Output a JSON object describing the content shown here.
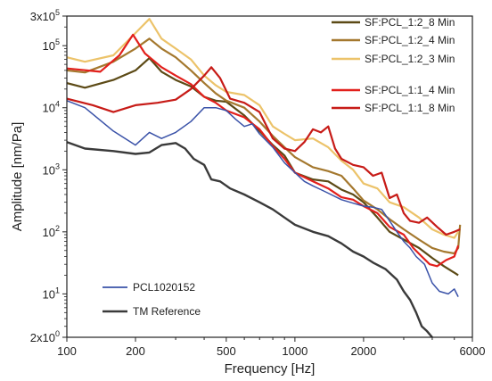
{
  "chart_data": {
    "type": "line",
    "xlabel": "Frequency [Hz]",
    "ylabel": "Amplitude [nm/Pa]",
    "x_scale": "log",
    "y_scale": "log",
    "xlim": [
      100,
      6000
    ],
    "ylim": [
      2,
      300000
    ],
    "x_ticks": [
      {
        "value": 100,
        "label": "100"
      },
      {
        "value": 200,
        "label": "200"
      },
      {
        "value": 500,
        "label": "500"
      },
      {
        "value": 1000,
        "label": "1000"
      },
      {
        "value": 2000,
        "label": "2000"
      },
      {
        "value": 6000,
        "label": "6000"
      }
    ],
    "y_ticks": [
      {
        "value": 2,
        "label": "2x10",
        "exp": "0"
      },
      {
        "value": 10,
        "label": "10",
        "exp": "1"
      },
      {
        "value": 100,
        "label": "10",
        "exp": "2"
      },
      {
        "value": 1000,
        "label": "10",
        "exp": "3"
      },
      {
        "value": 10000,
        "label": "10",
        "exp": "4"
      },
      {
        "value": 100000,
        "label": "10",
        "exp": "5"
      },
      {
        "value": 300000,
        "label": "3x10",
        "exp": "5"
      }
    ],
    "grid": false,
    "legend_placement": [
      "top-right",
      "bottom-left"
    ],
    "series": [
      {
        "name": "SF:PCL_1:2_8 Min",
        "color": "#5c4a16",
        "legend_group": "top",
        "points": [
          [
            100,
            25000
          ],
          [
            120,
            21000
          ],
          [
            160,
            28000
          ],
          [
            200,
            40000
          ],
          [
            230,
            63000
          ],
          [
            260,
            38000
          ],
          [
            300,
            28000
          ],
          [
            350,
            22000
          ],
          [
            400,
            15000
          ],
          [
            450,
            13000
          ],
          [
            500,
            12500
          ],
          [
            600,
            7500
          ],
          [
            700,
            4200
          ],
          [
            800,
            2500
          ],
          [
            900,
            1700
          ],
          [
            1000,
            900
          ],
          [
            1200,
            700
          ],
          [
            1400,
            650
          ],
          [
            1600,
            480
          ],
          [
            1800,
            400
          ],
          [
            2000,
            300
          ],
          [
            2300,
            170
          ],
          [
            2600,
            100
          ],
          [
            3000,
            75
          ],
          [
            3500,
            55
          ],
          [
            4000,
            38
          ],
          [
            4500,
            28
          ],
          [
            5000,
            22
          ],
          [
            5200,
            20
          ]
        ]
      },
      {
        "name": "SF:PCL_1:2_4 Min",
        "color": "#a4782e",
        "legend_group": "top",
        "points": [
          [
            100,
            40000
          ],
          [
            120,
            37000
          ],
          [
            160,
            55000
          ],
          [
            200,
            90000
          ],
          [
            230,
            130000
          ],
          [
            260,
            90000
          ],
          [
            300,
            65000
          ],
          [
            350,
            40000
          ],
          [
            400,
            25000
          ],
          [
            450,
            17000
          ],
          [
            500,
            13000
          ],
          [
            600,
            10000
          ],
          [
            700,
            6000
          ],
          [
            800,
            3500
          ],
          [
            900,
            2300
          ],
          [
            1000,
            1600
          ],
          [
            1200,
            1100
          ],
          [
            1400,
            950
          ],
          [
            1600,
            800
          ],
          [
            1800,
            500
          ],
          [
            2000,
            320
          ],
          [
            2300,
            230
          ],
          [
            2600,
            160
          ],
          [
            3000,
            110
          ],
          [
            3500,
            75
          ],
          [
            4000,
            55
          ],
          [
            4500,
            48
          ],
          [
            5000,
            45
          ],
          [
            5200,
            55
          ],
          [
            5300,
            130
          ]
        ]
      },
      {
        "name": "SF:PCL_1:2_3 Min",
        "color": "#ecc36a",
        "legend_group": "top",
        "points": [
          [
            100,
            65000
          ],
          [
            120,
            55000
          ],
          [
            160,
            70000
          ],
          [
            200,
            160000
          ],
          [
            230,
            270000
          ],
          [
            260,
            130000
          ],
          [
            300,
            90000
          ],
          [
            350,
            60000
          ],
          [
            400,
            33000
          ],
          [
            450,
            23000
          ],
          [
            500,
            18000
          ],
          [
            600,
            16000
          ],
          [
            700,
            11000
          ],
          [
            800,
            5000
          ],
          [
            900,
            3800
          ],
          [
            1000,
            3000
          ],
          [
            1200,
            3200
          ],
          [
            1400,
            2300
          ],
          [
            1600,
            1400
          ],
          [
            1800,
            1000
          ],
          [
            2000,
            600
          ],
          [
            2300,
            500
          ],
          [
            2600,
            300
          ],
          [
            3000,
            250
          ],
          [
            3500,
            170
          ],
          [
            4000,
            110
          ],
          [
            4500,
            90
          ],
          [
            5000,
            80
          ],
          [
            5200,
            100
          ]
        ]
      },
      {
        "name": "SF:PCL_1:1_4 Min",
        "color": "#e2201c",
        "legend_group": "top",
        "points": [
          [
            100,
            43000
          ],
          [
            140,
            38000
          ],
          [
            170,
            70000
          ],
          [
            195,
            150000
          ],
          [
            220,
            75000
          ],
          [
            260,
            45000
          ],
          [
            300,
            33000
          ],
          [
            350,
            24000
          ],
          [
            400,
            15000
          ],
          [
            450,
            12000
          ],
          [
            500,
            9000
          ],
          [
            600,
            7000
          ],
          [
            700,
            4500
          ],
          [
            800,
            2400
          ],
          [
            900,
            1500
          ],
          [
            1000,
            900
          ],
          [
            1200,
            650
          ],
          [
            1400,
            500
          ],
          [
            1600,
            360
          ],
          [
            1800,
            330
          ],
          [
            2000,
            260
          ],
          [
            2300,
            200
          ],
          [
            2600,
            120
          ],
          [
            3000,
            90
          ],
          [
            3300,
            55
          ],
          [
            3600,
            40
          ],
          [
            3900,
            30
          ],
          [
            4200,
            28
          ],
          [
            4600,
            35
          ],
          [
            5000,
            40
          ],
          [
            5200,
            60
          ]
        ]
      },
      {
        "name": "SF:PCL_1:1_8 Min",
        "color": "#c71b17",
        "legend_group": "top",
        "points": [
          [
            100,
            14000
          ],
          [
            130,
            11000
          ],
          [
            160,
            8500
          ],
          [
            200,
            11000
          ],
          [
            250,
            12000
          ],
          [
            300,
            13500
          ],
          [
            350,
            20000
          ],
          [
            400,
            33000
          ],
          [
            430,
            45000
          ],
          [
            470,
            30000
          ],
          [
            520,
            14000
          ],
          [
            600,
            12000
          ],
          [
            700,
            8500
          ],
          [
            800,
            3200
          ],
          [
            900,
            2200
          ],
          [
            1000,
            2000
          ],
          [
            1100,
            2800
          ],
          [
            1200,
            4500
          ],
          [
            1300,
            4000
          ],
          [
            1400,
            5000
          ],
          [
            1500,
            2200
          ],
          [
            1600,
            1500
          ],
          [
            1800,
            1200
          ],
          [
            2000,
            1100
          ],
          [
            2200,
            800
          ],
          [
            2400,
            900
          ],
          [
            2600,
            350
          ],
          [
            2800,
            400
          ],
          [
            3000,
            200
          ],
          [
            3200,
            150
          ],
          [
            3500,
            140
          ],
          [
            3800,
            170
          ],
          [
            4200,
            120
          ],
          [
            4600,
            90
          ],
          [
            5000,
            100
          ],
          [
            5300,
            110
          ]
        ]
      },
      {
        "name": "PCL1020152",
        "color": "#3a52a8",
        "legend_group": "bottom",
        "points": [
          [
            100,
            13000
          ],
          [
            120,
            10000
          ],
          [
            160,
            4200
          ],
          [
            200,
            2500
          ],
          [
            230,
            4000
          ],
          [
            260,
            3200
          ],
          [
            300,
            4000
          ],
          [
            350,
            6000
          ],
          [
            400,
            10000
          ],
          [
            450,
            10000
          ],
          [
            500,
            9000
          ],
          [
            550,
            6500
          ],
          [
            600,
            5000
          ],
          [
            650,
            5500
          ],
          [
            700,
            3800
          ],
          [
            800,
            2300
          ],
          [
            900,
            1300
          ],
          [
            1000,
            900
          ],
          [
            1100,
            650
          ],
          [
            1200,
            550
          ],
          [
            1300,
            480
          ],
          [
            1400,
            420
          ],
          [
            1600,
            330
          ],
          [
            1800,
            290
          ],
          [
            2000,
            260
          ],
          [
            2200,
            250
          ],
          [
            2400,
            230
          ],
          [
            2600,
            150
          ],
          [
            2800,
            100
          ],
          [
            3000,
            70
          ],
          [
            3200,
            55
          ],
          [
            3400,
            40
          ],
          [
            3700,
            30
          ],
          [
            4000,
            15
          ],
          [
            4300,
            11
          ],
          [
            4700,
            10
          ],
          [
            5000,
            12
          ],
          [
            5200,
            9
          ]
        ]
      },
      {
        "name": "TM Reference",
        "color": "#3a3a3a",
        "legend_group": "bottom",
        "points": [
          [
            100,
            2800
          ],
          [
            120,
            2200
          ],
          [
            160,
            2000
          ],
          [
            200,
            1800
          ],
          [
            230,
            1900
          ],
          [
            260,
            2500
          ],
          [
            300,
            2700
          ],
          [
            330,
            2200
          ],
          [
            360,
            1500
          ],
          [
            400,
            1200
          ],
          [
            430,
            700
          ],
          [
            470,
            650
          ],
          [
            520,
            500
          ],
          [
            600,
            400
          ],
          [
            700,
            300
          ],
          [
            800,
            230
          ],
          [
            900,
            170
          ],
          [
            1000,
            130
          ],
          [
            1200,
            100
          ],
          [
            1400,
            85
          ],
          [
            1600,
            65
          ],
          [
            1800,
            48
          ],
          [
            2000,
            40
          ],
          [
            2200,
            32
          ],
          [
            2500,
            25
          ],
          [
            2800,
            17
          ],
          [
            3000,
            11
          ],
          [
            3200,
            8
          ],
          [
            3400,
            5
          ],
          [
            3600,
            3
          ],
          [
            3800,
            2.5
          ],
          [
            4000,
            2
          ]
        ]
      }
    ]
  }
}
